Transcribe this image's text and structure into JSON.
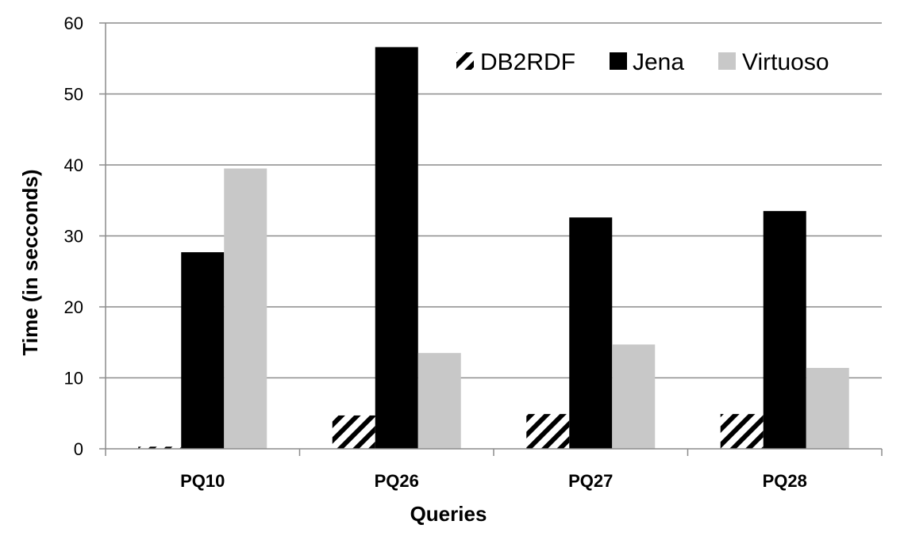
{
  "chart_data": {
    "type": "bar",
    "categories": [
      "PQ10",
      "PQ26",
      "PQ27",
      "PQ28"
    ],
    "series": [
      {
        "name": "DB2RDF",
        "values": [
          0.3,
          4.7,
          4.9,
          4.9
        ],
        "color": "#000000",
        "pattern": "diagonal-hatch"
      },
      {
        "name": "Jena",
        "values": [
          27.7,
          56.6,
          32.6,
          33.5
        ],
        "color": "#000000"
      },
      {
        "name": "Virtuoso",
        "values": [
          39.5,
          13.5,
          14.7,
          11.4
        ],
        "color": "#c8c8c8"
      }
    ],
    "title": "",
    "xlabel": "Queries",
    "ylabel": "Time (in secconds)",
    "ylim": [
      0,
      60
    ],
    "yticks": [
      0,
      10,
      20,
      30,
      40,
      50,
      60
    ],
    "grid": true,
    "legend_position": "top-right"
  }
}
